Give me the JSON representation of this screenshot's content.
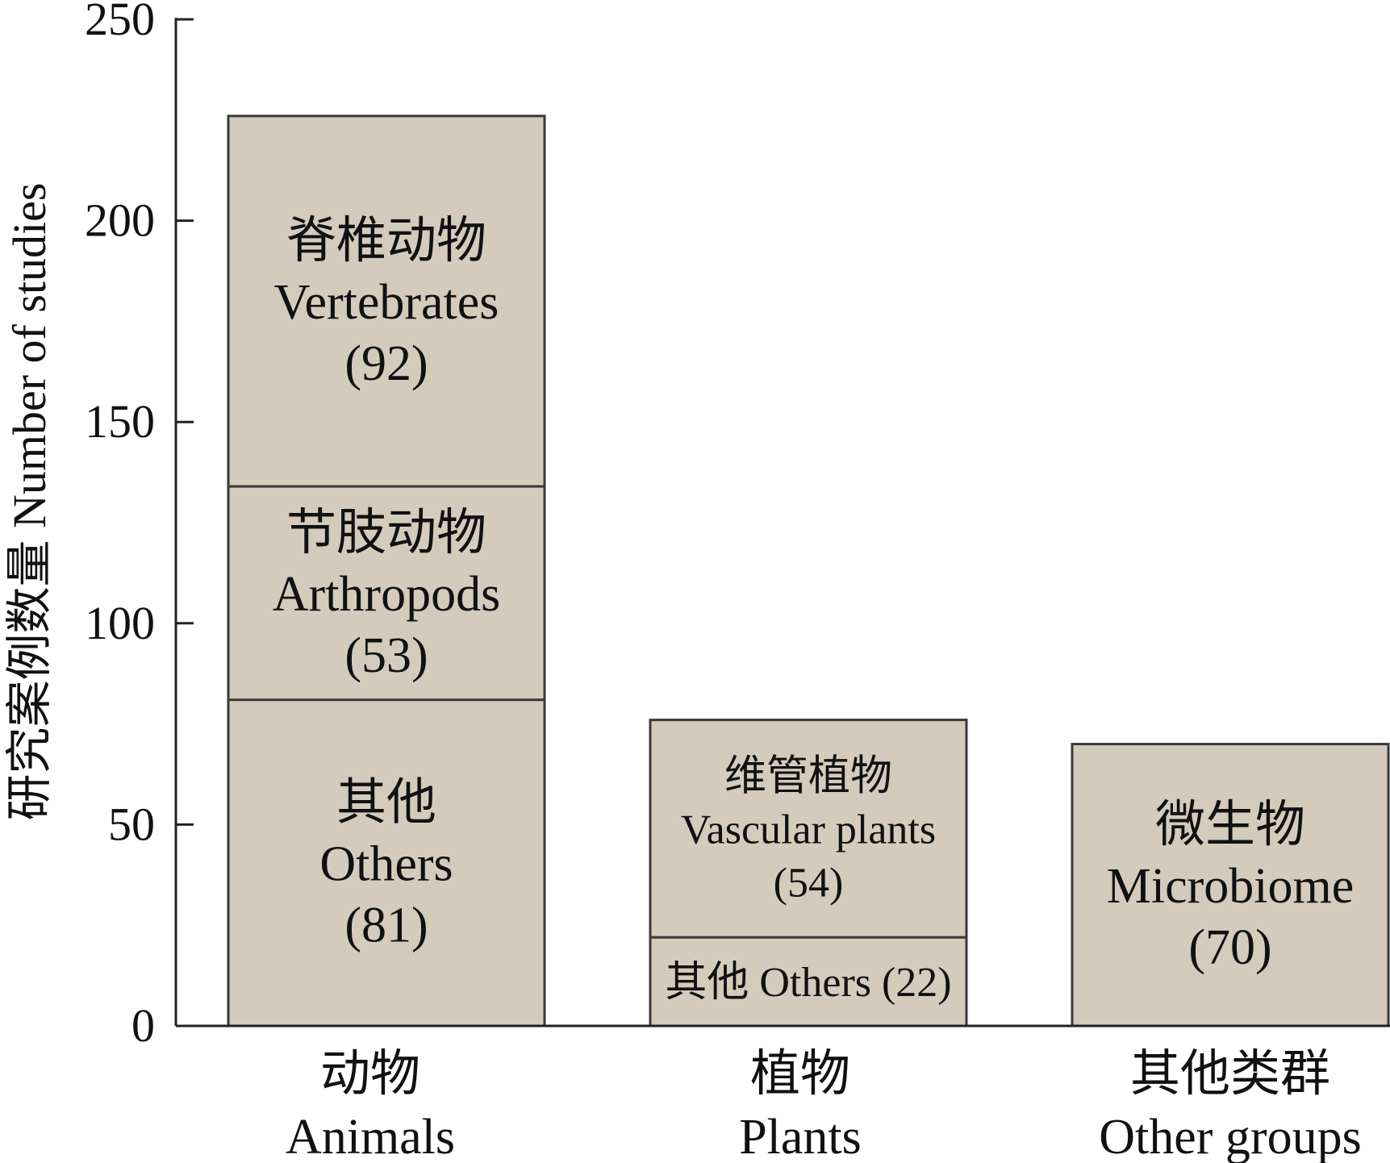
{
  "chart_data": {
    "type": "bar",
    "stacked": true,
    "ylabel": "研究案例数量 Number of studies",
    "ylim": [
      0,
      250
    ],
    "yticks": [
      0,
      50,
      100,
      150,
      200,
      250
    ],
    "grid": false,
    "legend": "none",
    "colors": {
      "fill": "#d5cbbd",
      "stroke": "#3a3a3a",
      "axis": "#222222",
      "text": "#111111"
    },
    "categories": [
      {
        "zh": "动物",
        "en": "Animals"
      },
      {
        "zh": "植物",
        "en": "Plants"
      },
      {
        "zh": "其他类群",
        "en": "Other groups"
      }
    ],
    "bars": [
      {
        "category": 0,
        "segments": [
          {
            "value": 81,
            "label_zh": "其他",
            "label_en": "Others",
            "count": "(81)"
          },
          {
            "value": 53,
            "label_zh": "节肢动物",
            "label_en": "Arthropods",
            "count": "(53)"
          },
          {
            "value": 92,
            "label_zh": "脊椎动物",
            "label_en": "Vertebrates",
            "count": "(92)"
          }
        ]
      },
      {
        "category": 1,
        "segments": [
          {
            "value": 22,
            "label_inline": "其他 Others (22)"
          },
          {
            "value": 54,
            "label_zh": "维管植物",
            "label_en": "Vascular plants",
            "count": "(54)"
          }
        ]
      },
      {
        "category": 2,
        "segments": [
          {
            "value": 70,
            "label_zh": "微生物",
            "label_en": "Microbiome",
            "count": "(70)"
          }
        ]
      }
    ]
  }
}
